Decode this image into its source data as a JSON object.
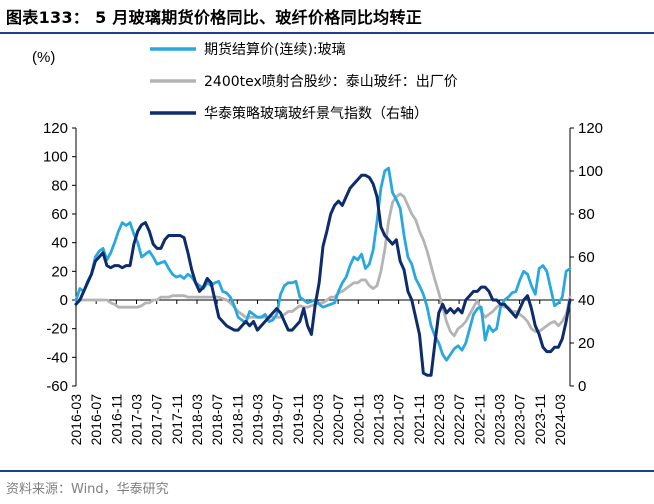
{
  "title": "图表133：  5 月玻璃期货价格同比、玻纤价格同比均转正",
  "source": "资料来源：Wind，华泰研究",
  "chart_data": {
    "type": "line",
    "ylabel": "(%)",
    "left_axis": {
      "min": -60,
      "max": 120,
      "ticks": [
        -60,
        -40,
        -20,
        0,
        20,
        40,
        60,
        80,
        100,
        120
      ]
    },
    "right_axis": {
      "min": 0,
      "max": 120,
      "ticks": [
        0,
        20,
        40,
        60,
        80,
        100,
        120
      ]
    },
    "x_start": "2016-03",
    "x_end": "2024-05",
    "x_ticks": [
      "2016-03",
      "2016-07",
      "2016-11",
      "2017-03",
      "2017-07",
      "2017-11",
      "2018-03",
      "2018-07",
      "2018-11",
      "2019-03",
      "2019-07",
      "2019-11",
      "2020-03",
      "2020-07",
      "2020-11",
      "2021-03",
      "2021-07",
      "2021-11",
      "2022-03",
      "2022-07",
      "2022-11",
      "2023-03",
      "2023-07",
      "2023-11",
      "2024-03"
    ],
    "legend_position": "top-center",
    "series": [
      {
        "name": "期货结算价(连续):玻璃",
        "axis": "left",
        "color": "#29a8e0",
        "values": [
          0,
          8,
          6,
          13,
          18,
          30,
          34,
          36,
          28,
          33,
          40,
          48,
          54,
          52,
          54,
          46,
          40,
          30,
          32,
          34,
          30,
          25,
          26,
          27,
          22,
          18,
          16,
          17,
          15,
          18,
          16,
          12,
          10,
          8,
          12,
          10,
          12,
          13,
          6,
          5,
          2,
          -4,
          -12,
          -14,
          -16,
          -8,
          -10,
          -12,
          -12,
          -10,
          -15,
          -14,
          -10,
          4,
          10,
          12,
          12,
          13,
          2,
          0,
          -2,
          -1,
          0,
          -3,
          -5,
          -4,
          -3,
          -2,
          6,
          12,
          16,
          24,
          30,
          28,
          32,
          22,
          25,
          35,
          55,
          78,
          90,
          92,
          75,
          70,
          64,
          45,
          30,
          25,
          15,
          10,
          4,
          -5,
          -18,
          -25,
          -30,
          -38,
          -42,
          -38,
          -34,
          -32,
          -35,
          -30,
          -20,
          -10,
          -6,
          -5,
          -28,
          -18,
          -22,
          -20,
          -5,
          0,
          2,
          5,
          6,
          14,
          20,
          18,
          10,
          4,
          22,
          24,
          20,
          8,
          -4,
          -2,
          2,
          20,
          22
        ]
      },
      {
        "name": "2400tex喷射合股纱：泰山玻纤：出厂价",
        "axis": "left",
        "color": "#b4b4b4",
        "values": [
          0,
          0,
          0,
          0,
          0,
          0,
          0,
          0,
          0,
          -2,
          -3,
          -5,
          -5,
          -5,
          -5,
          -5,
          -5,
          -4,
          -2,
          -2,
          0,
          0,
          2,
          2,
          2,
          3,
          3,
          3,
          3,
          2,
          2,
          2,
          2,
          2,
          2,
          2,
          2,
          2,
          1,
          0,
          -2,
          -5,
          -8,
          -10,
          -12,
          -12,
          -12,
          -12,
          -12,
          -12,
          -12,
          -12,
          -12,
          -12,
          -10,
          -8,
          -8,
          -6,
          -4,
          -5,
          -5,
          -4,
          -3,
          -2,
          -2,
          0,
          2,
          2,
          5,
          6,
          8,
          10,
          12,
          12,
          14,
          14,
          10,
          8,
          10,
          20,
          35,
          55,
          68,
          72,
          74,
          72,
          66,
          60,
          56,
          48,
          42,
          34,
          24,
          14,
          5,
          -5,
          -15,
          -22,
          -25,
          -20,
          -18,
          -15,
          -10,
          -5,
          0,
          -8,
          -12,
          -10,
          -8,
          -5,
          -3,
          -5,
          -5,
          -8,
          -8,
          -10,
          -12,
          -15,
          -20,
          -22,
          -22,
          -20,
          -18,
          -16,
          -15,
          -18,
          -15,
          -10,
          2
        ]
      },
      {
        "name": "华泰策略玻璃玻纤景气指数（右轴）",
        "axis": "right",
        "color": "#0c2c6b",
        "values": [
          38,
          40,
          44,
          48,
          52,
          58,
          60,
          62,
          56,
          55,
          56,
          56,
          55,
          56,
          56,
          66,
          72,
          75,
          76,
          72,
          66,
          64,
          64,
          68,
          70,
          70,
          70,
          70,
          69,
          62,
          54,
          48,
          44,
          46,
          50,
          48,
          40,
          32,
          30,
          28,
          27,
          26,
          26,
          28,
          30,
          28,
          30,
          26,
          28,
          30,
          32,
          34,
          36,
          34,
          30,
          26,
          26,
          28,
          30,
          36,
          28,
          24,
          38,
          48,
          65,
          72,
          80,
          84,
          86,
          84,
          88,
          92,
          94,
          96,
          98,
          98,
          97,
          94,
          88,
          74,
          70,
          68,
          66,
          68,
          58,
          54,
          44,
          40,
          32,
          24,
          6,
          5,
          5,
          20,
          34,
          38,
          34,
          36,
          34,
          36,
          34,
          40,
          42,
          44,
          44,
          46,
          46,
          44,
          40,
          40,
          38,
          38,
          36,
          34,
          32,
          36,
          40,
          42,
          36,
          28,
          24,
          18,
          16,
          16,
          18,
          18,
          22,
          30,
          40
        ]
      }
    ]
  }
}
